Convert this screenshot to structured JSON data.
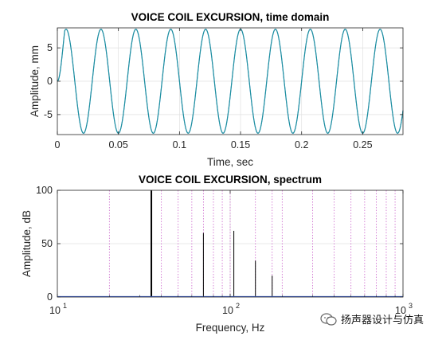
{
  "chart_data": [
    {
      "type": "line",
      "title": "VOICE COIL EXCURSION, time domain",
      "xlabel": "Time, sec",
      "ylabel": "Amplitude, mm",
      "xlim": [
        0,
        0.283
      ],
      "ylim": [
        -8,
        8
      ],
      "xticks": [
        0,
        0.05,
        0.1,
        0.15,
        0.2,
        0.25
      ],
      "xtick_labels": [
        "0",
        "0.05",
        "0.1",
        "0.15",
        "0.2",
        "0.25"
      ],
      "yticks": [
        -5,
        0,
        5
      ],
      "ytick_labels": [
        "-5",
        "0",
        "5"
      ],
      "grid": true,
      "series": [
        {
          "amplitude": 7.8,
          "frequency_hz": 35,
          "color": "#0072bd"
        },
        {
          "amplitude": 7.8,
          "frequency_hz": 35,
          "color": "#2a9d8f"
        }
      ]
    },
    {
      "type": "bar",
      "title": "VOICE COIL EXCURSION, spectrum",
      "xlabel": "Frequency, Hz",
      "ylabel": "Amplitude, dB",
      "xscale": "log",
      "xlim": [
        10,
        1000
      ],
      "ylim": [
        0,
        100
      ],
      "xticks": [
        10,
        100,
        1000
      ],
      "xtick_base": [
        "10",
        "10",
        "10"
      ],
      "xtick_exp": [
        "1",
        "2",
        "3"
      ],
      "yticks": [
        0,
        50,
        100
      ],
      "ytick_labels": [
        "0",
        "50",
        "100"
      ],
      "grid": true,
      "harmonic_guides_hz": [
        20,
        35,
        40,
        50,
        60,
        70,
        80,
        90,
        100,
        140,
        175,
        200,
        300,
        400,
        500,
        600,
        700,
        800,
        900
      ],
      "x": [
        35,
        70,
        105,
        140,
        175
      ],
      "values": [
        100,
        60,
        62,
        34,
        20
      ]
    }
  ],
  "watermark": {
    "text": "扬声器设计与仿真"
  },
  "colors": {
    "axes": "#262626",
    "grid": "#e0e0e0",
    "guide": "#cc66cc",
    "stems": "#000000"
  }
}
